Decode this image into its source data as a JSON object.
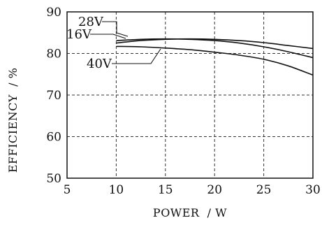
{
  "chart_data": {
    "type": "line",
    "title": "",
    "xlabel": "POWER  / W",
    "ylabel": "EFFICIENCY  / %",
    "xlim": [
      5,
      30
    ],
    "ylim": [
      50,
      90
    ],
    "xticks": [
      5,
      10,
      15,
      20,
      25,
      30
    ],
    "yticks": [
      50,
      60,
      70,
      80,
      90
    ],
    "grid": true,
    "series": [
      {
        "name": "28V",
        "x": [
          10,
          12.5,
          15,
          17.5,
          20,
          22.5,
          25,
          27.5,
          30
        ],
        "y": [
          82.5,
          83.1,
          83.4,
          83.5,
          83.4,
          83.1,
          82.6,
          81.9,
          81.2
        ]
      },
      {
        "name": "16V",
        "x": [
          10,
          12.5,
          15,
          17.5,
          20,
          22.5,
          25,
          27.5,
          30
        ],
        "y": [
          83.1,
          83.4,
          83.5,
          83.4,
          83.1,
          82.5,
          81.6,
          80.4,
          79.0
        ]
      },
      {
        "name": "40V",
        "x": [
          10,
          12.5,
          15,
          17.5,
          20,
          22.5,
          25,
          27.5,
          30
        ],
        "y": [
          81.7,
          81.6,
          81.3,
          80.9,
          80.3,
          79.6,
          78.6,
          77.0,
          74.8
        ]
      }
    ]
  }
}
